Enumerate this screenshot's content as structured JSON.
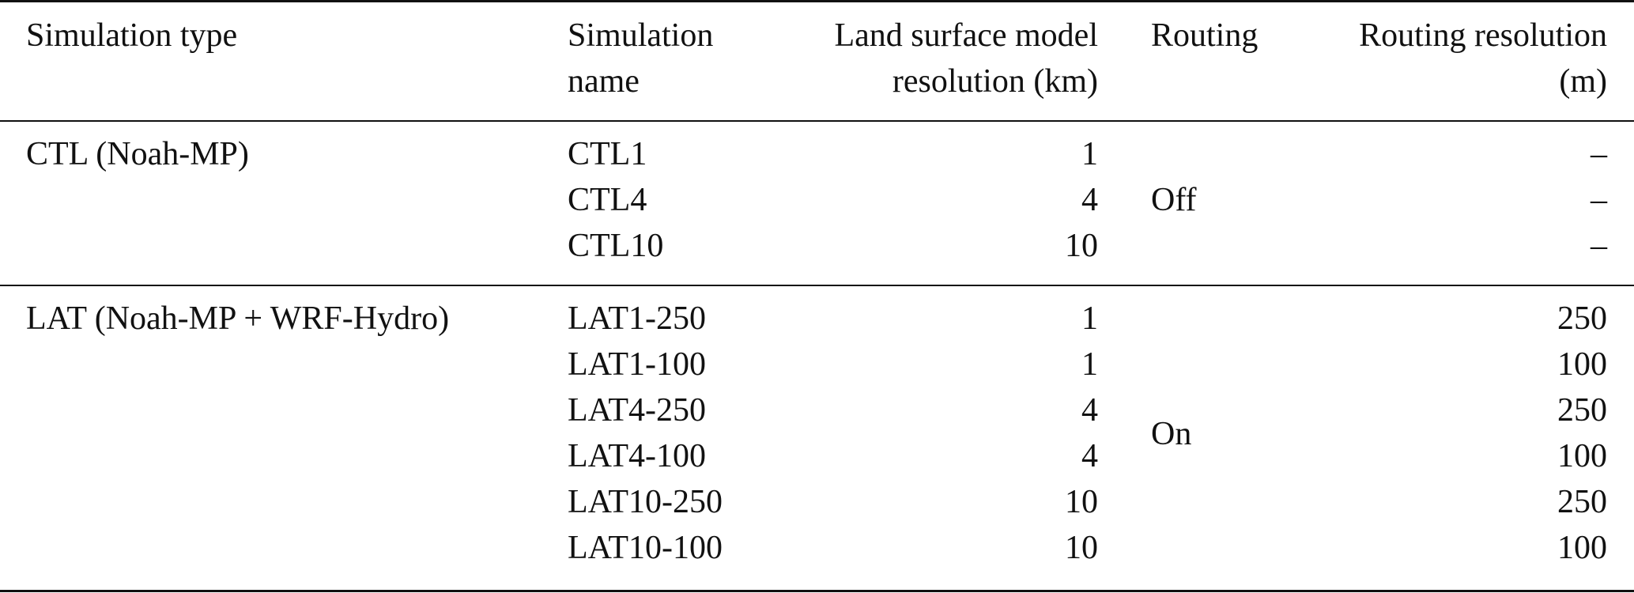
{
  "table": {
    "headers": {
      "simulation_type": "Simulation type",
      "simulation_name_line1": "Simulation",
      "simulation_name_line2": "name",
      "lsm_resolution_line1": "Land surface model",
      "lsm_resolution_line2": "resolution (km)",
      "routing": "Routing",
      "routing_resolution_line1": "Routing resolution",
      "routing_resolution_line2": "(m)"
    },
    "groups": [
      {
        "simulation_type": "CTL (Noah-MP)",
        "routing": "Off",
        "rows": [
          {
            "name": "CTL1",
            "lsm_resolution": "1",
            "routing_resolution": "–"
          },
          {
            "name": "CTL4",
            "lsm_resolution": "4",
            "routing_resolution": "–"
          },
          {
            "name": "CTL10",
            "lsm_resolution": "10",
            "routing_resolution": "–"
          }
        ]
      },
      {
        "simulation_type": "LAT (Noah-MP + WRF-Hydro)",
        "routing": "On",
        "rows": [
          {
            "name": "LAT1-250",
            "lsm_resolution": "1",
            "routing_resolution": "250"
          },
          {
            "name": "LAT1-100",
            "lsm_resolution": "1",
            "routing_resolution": "100"
          },
          {
            "name": "LAT4-250",
            "lsm_resolution": "4",
            "routing_resolution": "250"
          },
          {
            "name": "LAT4-100",
            "lsm_resolution": "4",
            "routing_resolution": "100"
          },
          {
            "name": "LAT10-250",
            "lsm_resolution": "10",
            "routing_resolution": "250"
          },
          {
            "name": "LAT10-100",
            "lsm_resolution": "10",
            "routing_resolution": "100"
          }
        ]
      }
    ]
  }
}
